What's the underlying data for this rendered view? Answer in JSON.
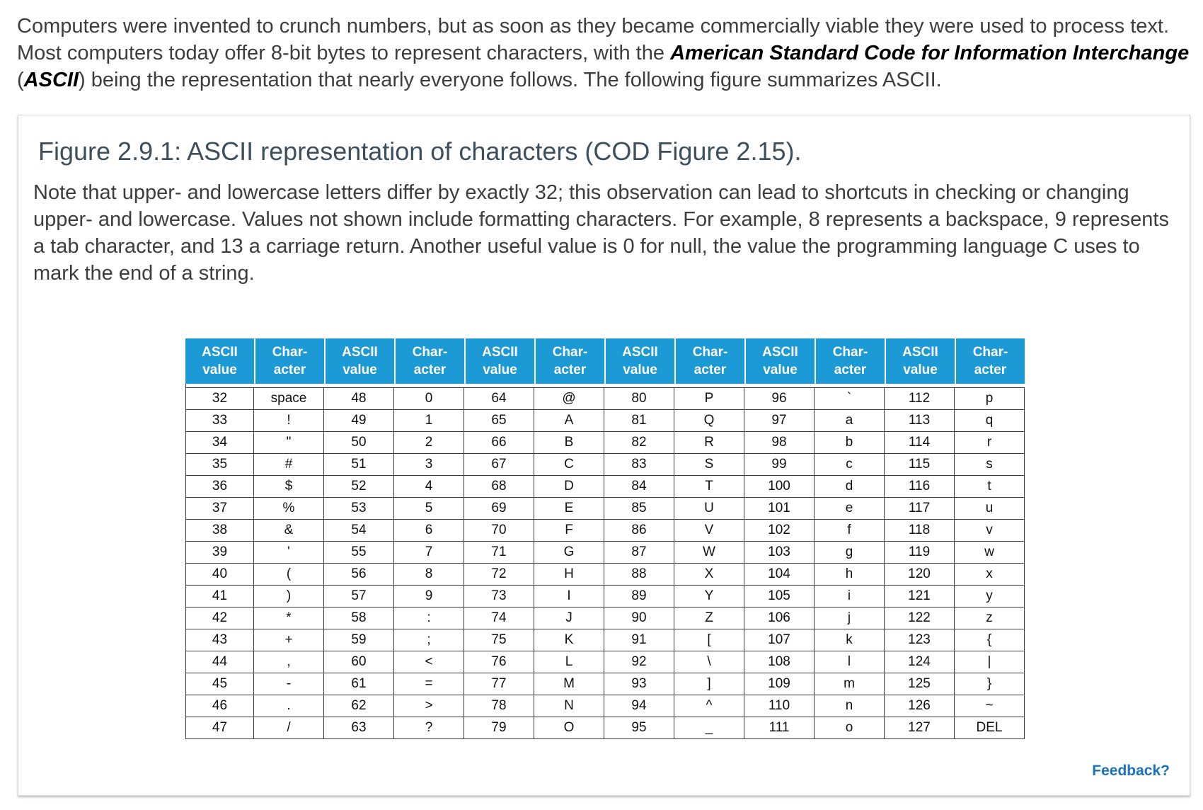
{
  "intro": {
    "before": "Computers were invented to crunch numbers, but as soon as they became commercially viable they were used to process text. Most computers today offer 8-bit bytes to represent characters, with the ",
    "term": "American Standard Code for Information Interchange",
    "paren_open": " (",
    "abbr": "ASCII",
    "after": ") being the representation that nearly everyone follows. The following figure summarizes ASCII."
  },
  "figure": {
    "title": "Figure 2.9.1: ASCII representation of characters (COD Figure 2.15).",
    "note": "Note that upper- and lowercase letters differ by exactly 32; this observation can lead to shortcuts in checking or changing upper- and lowercase. Values not shown include formatting characters. For example, 8 represents a backspace, 9 represents a tab character, and 13 a carriage return. Another useful value is 0 for null, the value the programming language C uses to mark the end of a string.",
    "header_color": "#1b9ad6",
    "headers": [
      [
        "ASCII",
        "value"
      ],
      [
        "Char-",
        "acter"
      ],
      [
        "ASCII",
        "value"
      ],
      [
        "Char-",
        "acter"
      ],
      [
        "ASCII",
        "value"
      ],
      [
        "Char-",
        "acter"
      ],
      [
        "ASCII",
        "value"
      ],
      [
        "Char-",
        "acter"
      ],
      [
        "ASCII",
        "value"
      ],
      [
        "Char-",
        "acter"
      ],
      [
        "ASCII",
        "value"
      ],
      [
        "Char-",
        "acter"
      ]
    ],
    "rows": [
      [
        "32",
        "space",
        "48",
        "0",
        "64",
        "@",
        "80",
        "P",
        "96",
        "`",
        "112",
        "p"
      ],
      [
        "33",
        "!",
        "49",
        "1",
        "65",
        "A",
        "81",
        "Q",
        "97",
        "a",
        "113",
        "q"
      ],
      [
        "34",
        "\"",
        "50",
        "2",
        "66",
        "B",
        "82",
        "R",
        "98",
        "b",
        "114",
        "r"
      ],
      [
        "35",
        "#",
        "51",
        "3",
        "67",
        "C",
        "83",
        "S",
        "99",
        "c",
        "115",
        "s"
      ],
      [
        "36",
        "$",
        "52",
        "4",
        "68",
        "D",
        "84",
        "T",
        "100",
        "d",
        "116",
        "t"
      ],
      [
        "37",
        "%",
        "53",
        "5",
        "69",
        "E",
        "85",
        "U",
        "101",
        "e",
        "117",
        "u"
      ],
      [
        "38",
        "&",
        "54",
        "6",
        "70",
        "F",
        "86",
        "V",
        "102",
        "f",
        "118",
        "v"
      ],
      [
        "39",
        "'",
        "55",
        "7",
        "71",
        "G",
        "87",
        "W",
        "103",
        "g",
        "119",
        "w"
      ],
      [
        "40",
        "(",
        "56",
        "8",
        "72",
        "H",
        "88",
        "X",
        "104",
        "h",
        "120",
        "x"
      ],
      [
        "41",
        ")",
        "57",
        "9",
        "73",
        "I",
        "89",
        "Y",
        "105",
        "i",
        "121",
        "y"
      ],
      [
        "42",
        "*",
        "58",
        ":",
        "74",
        "J",
        "90",
        "Z",
        "106",
        "j",
        "122",
        "z"
      ],
      [
        "43",
        "+",
        "59",
        ";",
        "75",
        "K",
        "91",
        "[",
        "107",
        "k",
        "123",
        "{"
      ],
      [
        "44",
        ",",
        "60",
        "<",
        "76",
        "L",
        "92",
        "\\",
        "108",
        "l",
        "124",
        "|"
      ],
      [
        "45",
        "-",
        "61",
        "=",
        "77",
        "M",
        "93",
        "]",
        "109",
        "m",
        "125",
        "}"
      ],
      [
        "46",
        ".",
        "62",
        ">",
        "78",
        "N",
        "94",
        "^",
        "110",
        "n",
        "126",
        "~"
      ],
      [
        "47",
        "/",
        "63",
        "?",
        "79",
        "O",
        "95",
        "_",
        "111",
        "o",
        "127",
        "DEL"
      ]
    ]
  },
  "feedback_label": "Feedback?"
}
